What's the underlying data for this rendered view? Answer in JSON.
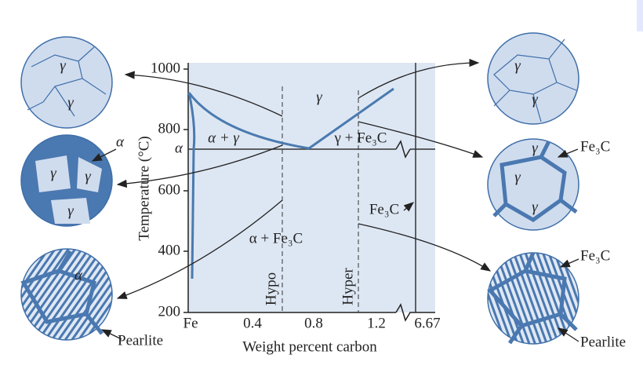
{
  "axes": {
    "y_label": "Temperature (°C)",
    "x_label": "Weight percent carbon",
    "y_ticks": [
      "1000",
      "800",
      "600",
      "400",
      "200"
    ],
    "x_ticks": [
      "Fe",
      "0.4",
      "0.8",
      "1.2",
      "6.67"
    ]
  },
  "regions": {
    "gamma": "γ",
    "alpha_gamma": "α + γ",
    "gamma_fe3c": "γ + Fe₃C",
    "alpha": "α",
    "alpha_fe3c": "α + Fe₃C",
    "fe3c": "Fe₃C",
    "hypo": "Hypo",
    "hyper": "Hyper"
  },
  "left_micro": {
    "top": [
      "γ",
      "γ"
    ],
    "middle": [
      "α",
      "γ",
      "γ",
      "γ"
    ],
    "bottom": [
      "α",
      "Pearlite"
    ]
  },
  "right_micro": {
    "top": [
      "γ",
      "γ"
    ],
    "middle": [
      "γ",
      "γ",
      "γ",
      "Fe₃C"
    ],
    "bottom": [
      "Fe₃C",
      "Pearlite"
    ]
  }
}
